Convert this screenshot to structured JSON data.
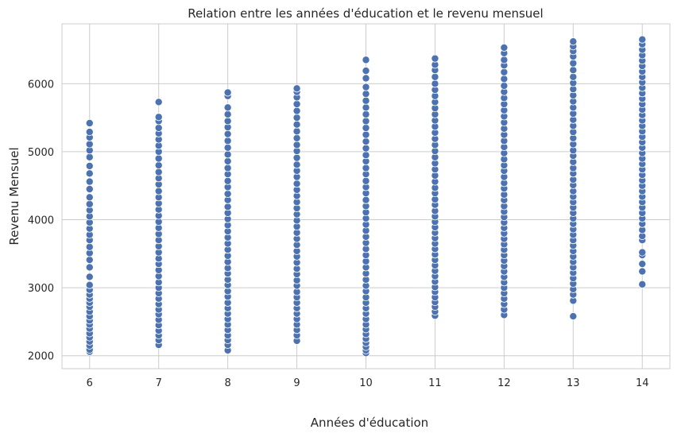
{
  "chart_data": {
    "type": "scatter",
    "title": "Relation entre les années d'éducation et le revenu mensuel",
    "xlabel": "Années d'éducation",
    "ylabel": "Revenu Mensuel",
    "xlim": [
      5.6,
      14.4
    ],
    "ylim": [
      1810,
      6880
    ],
    "x_ticks": [
      6,
      7,
      8,
      9,
      10,
      11,
      12,
      13,
      14
    ],
    "y_ticks": [
      2000,
      3000,
      4000,
      5000,
      6000
    ],
    "grid": true,
    "marker_color": "#4c72b0",
    "marker_edge": "#ffffff",
    "series": [
      {
        "points_by_x": [
          {
            "x": 6,
            "y": [
              2060,
              2090,
              2150,
              2210,
              2270,
              2330,
              2400,
              2460,
              2520,
              2580,
              2650,
              2720,
              2780,
              2840,
              2900,
              2970,
              3040,
              3160,
              3300,
              3410,
              3510,
              3600,
              3700,
              3780,
              3870,
              3960,
              4050,
              4140,
              4230,
              4330,
              4450,
              4560,
              4680,
              4790,
              4920,
              5020,
              5110,
              5210,
              5290,
              5420
            ]
          },
          {
            "x": 7,
            "y": [
              2160,
              2230,
              2300,
              2370,
              2450,
              2530,
              2610,
              2680,
              2760,
              2840,
              2920,
              3000,
              3080,
              3170,
              3260,
              3350,
              3430,
              3520,
              3610,
              3700,
              3790,
              3880,
              3970,
              4060,
              4150,
              4240,
              4330,
              4420,
              4520,
              4610,
              4700,
              4800,
              4900,
              5000,
              5090,
              5180,
              5270,
              5350,
              5450,
              5510,
              5730
            ]
          },
          {
            "x": 8,
            "y": [
              2080,
              2160,
              2230,
              2300,
              2380,
              2460,
              2540,
              2620,
              2700,
              2780,
              2870,
              2950,
              3040,
              3120,
              3210,
              3290,
              3380,
              3470,
              3560,
              3650,
              3740,
              3830,
              3920,
              4010,
              4100,
              4190,
              4290,
              4380,
              4480,
              4570,
              4670,
              4760,
              4860,
              4960,
              5060,
              5160,
              5260,
              5360,
              5450,
              5550,
              5650,
              5820,
              5870
            ]
          },
          {
            "x": 9,
            "y": [
              2220,
              2300,
              2380,
              2460,
              2540,
              2620,
              2700,
              2780,
              2860,
              2940,
              3030,
              3110,
              3200,
              3280,
              3370,
              3460,
              3540,
              3630,
              3720,
              3810,
              3900,
              3990,
              4080,
              4170,
              4260,
              4350,
              4440,
              4530,
              4630,
              4720,
              4810,
              4910,
              5010,
              5100,
              5200,
              5300,
              5400,
              5500,
              5600,
              5700,
              5800,
              5880,
              5930
            ]
          },
          {
            "x": 10,
            "y": [
              2040,
              2080,
              2130,
              2190,
              2250,
              2320,
              2390,
              2460,
              2540,
              2620,
              2700,
              2780,
              2860,
              2950,
              3030,
              3120,
              3210,
              3300,
              3390,
              3480,
              3570,
              3660,
              3750,
              3840,
              3930,
              4020,
              4110,
              4200,
              4290,
              4390,
              4480,
              4570,
              4670,
              4760,
              4860,
              4950,
              5050,
              5150,
              5250,
              5350,
              5450,
              5550,
              5650,
              5750,
              5850,
              5950,
              6080,
              6190,
              6350
            ]
          },
          {
            "x": 11,
            "y": [
              2590,
              2650,
              2720,
              2790,
              2860,
              2940,
              3010,
              3090,
              3170,
              3250,
              3330,
              3410,
              3490,
              3570,
              3650,
              3730,
              3810,
              3890,
              3970,
              4050,
              4130,
              4220,
              4300,
              4390,
              4470,
              4560,
              4650,
              4740,
              4830,
              4920,
              5010,
              5100,
              5190,
              5280,
              5370,
              5460,
              5550,
              5640,
              5730,
              5820,
              5910,
              6000,
              6100,
              6200,
              6280,
              6370
            ]
          },
          {
            "x": 12,
            "y": [
              2600,
              2680,
              2760,
              2840,
              2920,
              3000,
              3080,
              3160,
              3240,
              3320,
              3400,
              3480,
              3560,
              3640,
              3720,
              3800,
              3880,
              3960,
              4040,
              4120,
              4200,
              4290,
              4370,
              4460,
              4540,
              4630,
              4720,
              4800,
              4890,
              4980,
              5070,
              5160,
              5250,
              5340,
              5430,
              5520,
              5610,
              5700,
              5790,
              5880,
              5970,
              6070,
              6170,
              6270,
              6350,
              6450,
              6530
            ]
          },
          {
            "x": 13,
            "y": [
              2580,
              2810,
              2900,
              2980,
              3060,
              3140,
              3220,
              3300,
              3380,
              3460,
              3540,
              3620,
              3700,
              3780,
              3860,
              3940,
              4020,
              4100,
              4180,
              4260,
              4340,
              4420,
              4510,
              4590,
              4680,
              4760,
              4850,
              4940,
              5020,
              5110,
              5200,
              5290,
              5380,
              5470,
              5560,
              5650,
              5740,
              5830,
              5920,
              6010,
              6100,
              6200,
              6300,
              6400,
              6480,
              6550,
              6620
            ]
          },
          {
            "x": 14,
            "y": [
              3050,
              3240,
              3350,
              3480,
              3520,
              3700,
              3760,
              3850,
              3940,
              4020,
              4100,
              4180,
              4260,
              4340,
              4420,
              4500,
              4580,
              4660,
              4740,
              4820,
              4900,
              4980,
              5060,
              5140,
              5220,
              5300,
              5380,
              5460,
              5540,
              5620,
              5700,
              5780,
              5860,
              5940,
              6020,
              6100,
              6180,
              6260,
              6340,
              6420,
              6500,
              6580,
              6650
            ]
          }
        ]
      }
    ]
  }
}
